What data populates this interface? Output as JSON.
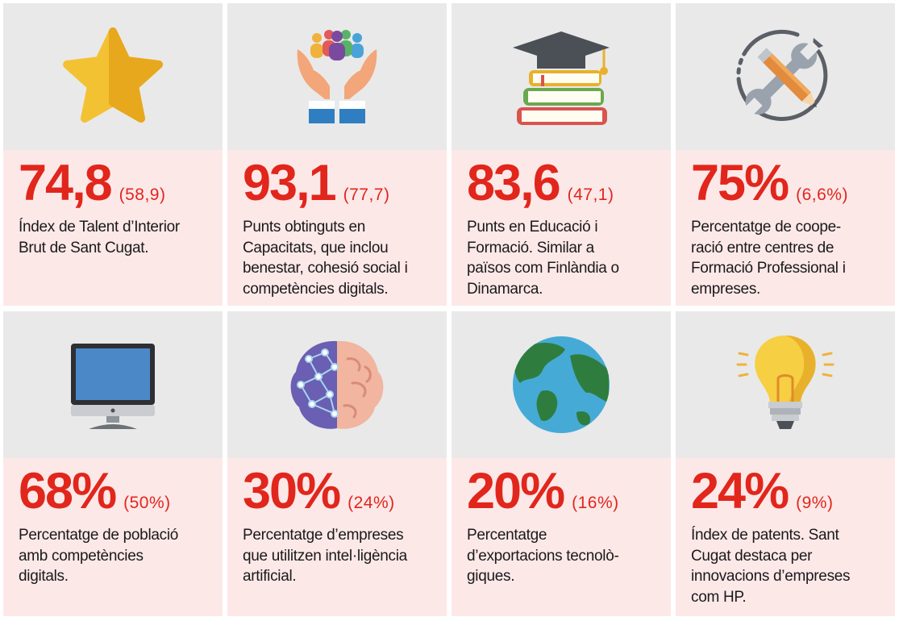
{
  "cards": [
    {
      "value": "74,8",
      "ref": "(58,9)",
      "lines": [
        "Índex de Talent d’Interior",
        "Brut de Sant Cugat."
      ],
      "icon": "star-icon"
    },
    {
      "value": "93,1",
      "ref": "(77,7)",
      "lines": [
        "Punts obtinguts en",
        "Capacitats, que inclou",
        "benestar, cohesió social i",
        "competències digitals."
      ],
      "icon": "hands-people-icon"
    },
    {
      "value": "83,6",
      "ref": "(47,1)",
      "lines": [
        "Punts en Educació i",
        "Formació. Similar a",
        "països com Finlàndia o",
        "Dinamarca."
      ],
      "icon": "graduation-books-icon"
    },
    {
      "value": "75%",
      "ref": "(6,6%)",
      "lines": [
        "Percentatge de coope-",
        "ració entre centres de",
        "Formació Professional i",
        "empreses."
      ],
      "icon": "wrench-pencil-icon"
    },
    {
      "value": "68%",
      "ref": "(50%)",
      "lines": [
        "Percentatge de població",
        "amb competències",
        "digitals."
      ],
      "icon": "monitor-icon"
    },
    {
      "value": "30%",
      "ref": "(24%)",
      "lines": [
        "Percentatge d’empreses",
        "que utilitzen intel·ligència",
        "artificial."
      ],
      "icon": "brain-network-icon"
    },
    {
      "value": "20%",
      "ref": "(16%)",
      "lines": [
        "Percentatge",
        "d’exportacions tecnolò-",
        "giques."
      ],
      "icon": "globe-icon"
    },
    {
      "value": "24%",
      "ref": "(9%)",
      "lines": [
        "Índex de patents. Sant",
        "Cugat destaca per",
        "innovacions d’empreses",
        "com HP."
      ],
      "icon": "lightbulb-icon"
    }
  ],
  "colors": {
    "accent": "#e1261c",
    "card_top": "#e9e9e9",
    "card_bottom": "#fde8e8"
  }
}
